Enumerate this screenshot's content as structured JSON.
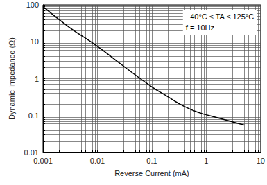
{
  "chart_data": {
    "type": "line",
    "x_label": "Reverse Current (mA)",
    "y_label": "Dynamic Impedance (Ω)",
    "annotations": [
      "−40°C ≤ TA ≤ 125°C",
      "f = 10Hz"
    ],
    "x": [
      0.001,
      0.003,
      0.01,
      0.03,
      0.1,
      0.2,
      0.3,
      0.5,
      0.8,
      1,
      2,
      3,
      5
    ],
    "values": [
      90,
      25,
      7.5,
      2.2,
      0.6,
      0.32,
      0.22,
      0.15,
      0.115,
      0.105,
      0.08,
      0.068,
      0.055
    ],
    "color": "#000000",
    "xlim": [
      0.001,
      10
    ],
    "xticks": [
      0.001,
      0.01,
      0.1,
      1,
      10
    ],
    "ylim": [
      0.01,
      100
    ],
    "yticks": [
      0.01,
      0.1,
      1,
      10,
      100
    ],
    "log": true,
    "grid": true
  }
}
